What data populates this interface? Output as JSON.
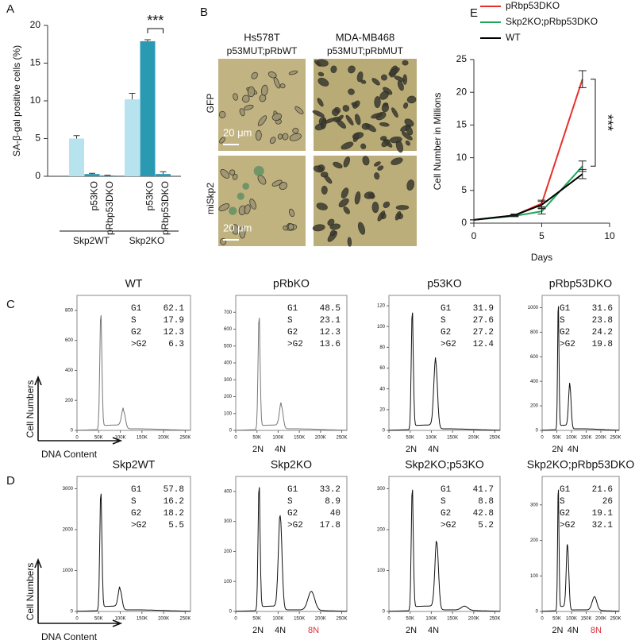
{
  "panel_labels": [
    "A",
    "B",
    "C",
    "D",
    "E"
  ],
  "chart_data": [
    {
      "type": "bar",
      "ylabel": "SA-β-gal positive cells (%)",
      "categories": [
        null,
        "p53KO",
        "pRbp53DKO",
        null,
        "p53KO",
        "pRbp53DKO"
      ],
      "groups": [
        "Skp2WT",
        "Skp2KO"
      ],
      "values": [
        5.0,
        0.3,
        0.1,
        10.2,
        17.9,
        0.3
      ],
      "errors": [
        0.4,
        0.1,
        0.05,
        0.8,
        0.2,
        0.3
      ],
      "colors": [
        "#b6e3ee",
        "#2a9ab3",
        "#2a9ab3",
        "#b6e3ee",
        "#2a9ab3",
        "#2a9ab3"
      ],
      "ylim": [
        0,
        20
      ],
      "yticks": [
        0,
        5,
        10,
        15,
        20
      ],
      "annotation": "***"
    },
    {
      "type": "line",
      "xlabel": "Days",
      "ylabel": "Cell Number in Millions",
      "x": [
        0,
        3,
        5,
        8
      ],
      "series": [
        {
          "name": "pRbp53DKO",
          "color": "#e8302a",
          "values": [
            0.5,
            1.2,
            3.0,
            22.0
          ],
          "errors": [
            0,
            0.2,
            0.5,
            1.3
          ]
        },
        {
          "name": "Skp2KO;pRbp53DKO",
          "color": "#1fa65a",
          "values": [
            0.5,
            1.1,
            1.8,
            8.7
          ],
          "errors": [
            0,
            0.1,
            0.4,
            0.8
          ]
        },
        {
          "name": "WT",
          "color": "#000000",
          "values": [
            0.5,
            1.2,
            2.8,
            7.5
          ],
          "errors": [
            0,
            0.1,
            0.5,
            0.7
          ]
        }
      ],
      "xlim": [
        0,
        10
      ],
      "xticks": [
        0,
        5,
        10
      ],
      "ylim": [
        0,
        25
      ],
      "yticks": [
        0,
        5,
        10,
        15,
        20,
        25
      ],
      "annotation": "***",
      "legend": "top-left"
    }
  ],
  "micrographs": {
    "columns": [
      {
        "name": "Hs578T",
        "genotype": "p53MUT;pRbWT"
      },
      {
        "name": "MDA-MB468",
        "genotype": "p53MUT;pRbMUT"
      }
    ],
    "rows": [
      "GFP",
      "miSkp2"
    ],
    "scale_bar": "20 μm"
  },
  "flow": {
    "axis_labels": {
      "y": "Cell Numbers",
      "x": "DNA Content"
    },
    "stat_labels": [
      "G1",
      "S",
      "G2",
      ">G2"
    ],
    "xlim": [
      0,
      262144
    ],
    "xticks": [
      0,
      {
        "value": 50000,
        "label": "50K"
      },
      {
        "value": 100000,
        "label": "100K"
      },
      {
        "value": 150000,
        "label": "150K"
      },
      {
        "value": 200000,
        "label": "200K"
      },
      {
        "value": 250000,
        "label": "250K"
      }
    ],
    "rows": [
      {
        "panels": [
          {
            "title": "WT",
            "stats": [
              62.1,
              17.9,
              12.3,
              6.3
            ],
            "ylim": [
              0,
              900
            ],
            "yticks": [
              0,
              200,
              400,
              600,
              800
            ],
            "ploidy": []
          },
          {
            "title": "pRbKO",
            "stats": [
              48.5,
              23.1,
              12.3,
              13.6
            ],
            "ylim": [
              0,
              800
            ],
            "yticks": [
              0,
              100,
              200,
              300,
              400,
              500,
              600,
              700
            ],
            "ploidy": [
              "2N",
              "4N"
            ]
          },
          {
            "title": "p53KO",
            "stats": [
              31.9,
              27.6,
              27.2,
              12.4
            ],
            "ylim": [
              0,
              130
            ],
            "yticks": [
              0,
              20,
              40,
              60,
              80,
              100,
              120
            ],
            "ploidy": [
              "2N",
              "4N"
            ]
          },
          {
            "title": "pRbp53DKO",
            "stats": [
              31.6,
              23.8,
              24.2,
              19.8
            ],
            "ylim": [
              0,
              1100
            ],
            "yticks": [
              0,
              200,
              400,
              600,
              800,
              1000
            ],
            "ploidy": [
              "2N",
              "4N"
            ]
          }
        ]
      },
      {
        "panels": [
          {
            "title": "Skp2WT",
            "stats": [
              57.8,
              16.2,
              18.2,
              5.5
            ],
            "ylim": [
              0,
              3300
            ],
            "yticks": [
              0,
              1000,
              2000,
              3000
            ],
            "ploidy": []
          },
          {
            "title": "Skp2KO",
            "stats": [
              33.2,
              8.9,
              40,
              17.8
            ],
            "ylim": [
              0,
              450
            ],
            "yticks": [
              0,
              100,
              200,
              300,
              400
            ],
            "ploidy": [
              "2N",
              "4N",
              "8N"
            ]
          },
          {
            "title": "Skp2KO;p53KO",
            "stats": [
              41.7,
              8.8,
              42.8,
              5.2
            ],
            "ylim": [
              0,
              330
            ],
            "yticks": [
              0,
              100,
              200,
              300
            ],
            "ploidy": [
              "2N",
              "4N"
            ]
          },
          {
            "title": "Skp2KO;pRbp53DKO",
            "stats": [
              21.6,
              26,
              19.1,
              32.1
            ],
            "ylim": [
              0,
              380
            ],
            "yticks": [
              0,
              100,
              200,
              300
            ],
            "ploidy": [
              "2N",
              "4N",
              "8N"
            ]
          }
        ]
      }
    ]
  }
}
